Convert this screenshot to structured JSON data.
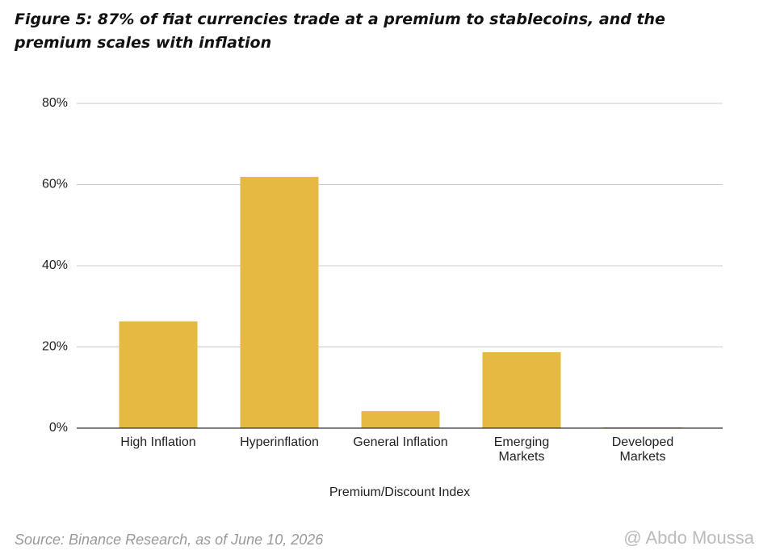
{
  "chart_data": {
    "type": "bar",
    "title": "Figure 5: 87% of fiat currencies trade at a premium to stablecoins, and the premium scales with inflation",
    "categories": [
      "High Inflation",
      "Hyperinflation",
      "General Inflation",
      "Emerging Markets",
      "Developed Markets"
    ],
    "values": [
      26.3,
      61.9,
      4.2,
      18.7,
      0.2
    ],
    "color": "#e6b942",
    "ylim": [
      0,
      80
    ],
    "yticks": [
      {
        "value": 0,
        "label": "0%"
      },
      {
        "value": 20,
        "label": "20%"
      },
      {
        "value": 40,
        "label": "40%"
      },
      {
        "value": 60,
        "label": "60%"
      },
      {
        "value": 80,
        "label": "80%"
      }
    ],
    "grid": true,
    "x_label": "Premium/Discount Index",
    "source": "Source: Binance Research, as of June 10, 2026",
    "watermark": "@ Abdo Moussa"
  }
}
